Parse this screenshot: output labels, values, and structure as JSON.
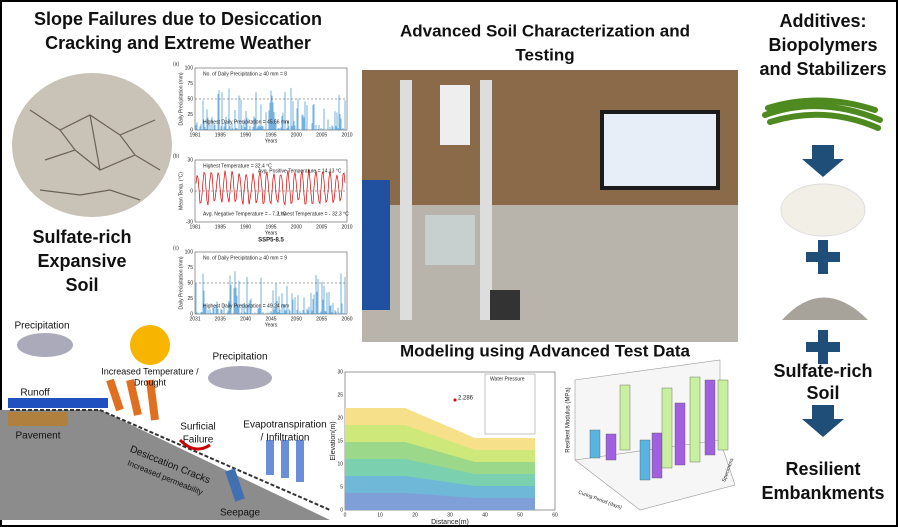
{
  "left": {
    "title": [
      "Slope Failures due to Desiccation",
      "Cracking and Extreme Weather"
    ],
    "soil_label": [
      "Sulfate-rich",
      "Expansive",
      "Soil"
    ],
    "charts": [
      {
        "panel": "(a)",
        "y_label": "Daily Precipitation (mm)",
        "x_label": "Years",
        "annotations": [
          "No. of Daily Precipitation ≥ 40 mm = 8",
          "Highest Daily Precipitation = 45.66 mm"
        ],
        "yticks": [
          0,
          25,
          50,
          75,
          100
        ],
        "xticks": [
          1981,
          1985,
          1990,
          1995,
          2000,
          2005,
          2010
        ]
      },
      {
        "panel": "(b)",
        "y_label": "Mean Temp. (°C)",
        "x_label": "Years",
        "annotations": [
          "Highest Temperature = 32.4 °C",
          "Avg. Positive Temperature = 14.13 °C",
          "Avg. Negative Temperature = - 7.2 °C",
          "Lowest Temperature = - 32.3 °C"
        ],
        "yticks": [
          -30,
          0,
          30
        ],
        "xticks": [
          1981,
          1985,
          1990,
          1995,
          2000,
          2005,
          2010
        ]
      },
      {
        "panel": "(c)",
        "subtitle": "SSP5-8.5",
        "y_label": "Daily Precipitation (mm)",
        "x_label": "Years",
        "annotations": [
          "No. of Daily Precipitation ≥ 40 mm = 9",
          "Highest Daily Precipitation = 49.24 mm"
        ],
        "yticks": [
          0,
          25,
          50,
          75,
          100
        ],
        "xticks": [
          2031,
          2035,
          2040,
          2045,
          2050,
          2055,
          2060
        ]
      }
    ],
    "diagram": {
      "precip_left": "Precipitation",
      "temperature": [
        "Increased Temperature /",
        "Drought"
      ],
      "precip_right": "Precipitation",
      "runoff": "Runoff",
      "pavement": "Pavement",
      "failure": [
        "Surficial",
        "Failure"
      ],
      "cracks": "Desiccation Cracks",
      "permeability": "Increased permeability",
      "evapo": [
        "Evapotranspiration",
        "/ Infiltration"
      ],
      "seepage": "Seepage"
    }
  },
  "center": {
    "title": [
      "Advanced Soil Characterization and",
      "Testing"
    ],
    "modeling_title": "Modeling using Advanced Test Data",
    "contour": {
      "y_label": "Elevation(m)",
      "x_label": "Distance(m)",
      "factor": "2.286",
      "legend_title": "Water Pressure",
      "xticks": [
        0,
        10,
        20,
        30,
        40,
        50,
        60
      ],
      "yticks": [
        0,
        5,
        10,
        15,
        20,
        25,
        30
      ]
    },
    "bars3d": {
      "y_label": "Resilient Modulus (MPa)",
      "x_label": "Curing Period (days)",
      "z_label": "Specimens"
    }
  },
  "right": {
    "title": [
      "Additives:",
      "Biopolymers",
      "and Stabilizers"
    ],
    "soil": [
      "Sulfate-rich",
      "Soil"
    ],
    "result": [
      "Resilient",
      "Embankments"
    ]
  }
}
